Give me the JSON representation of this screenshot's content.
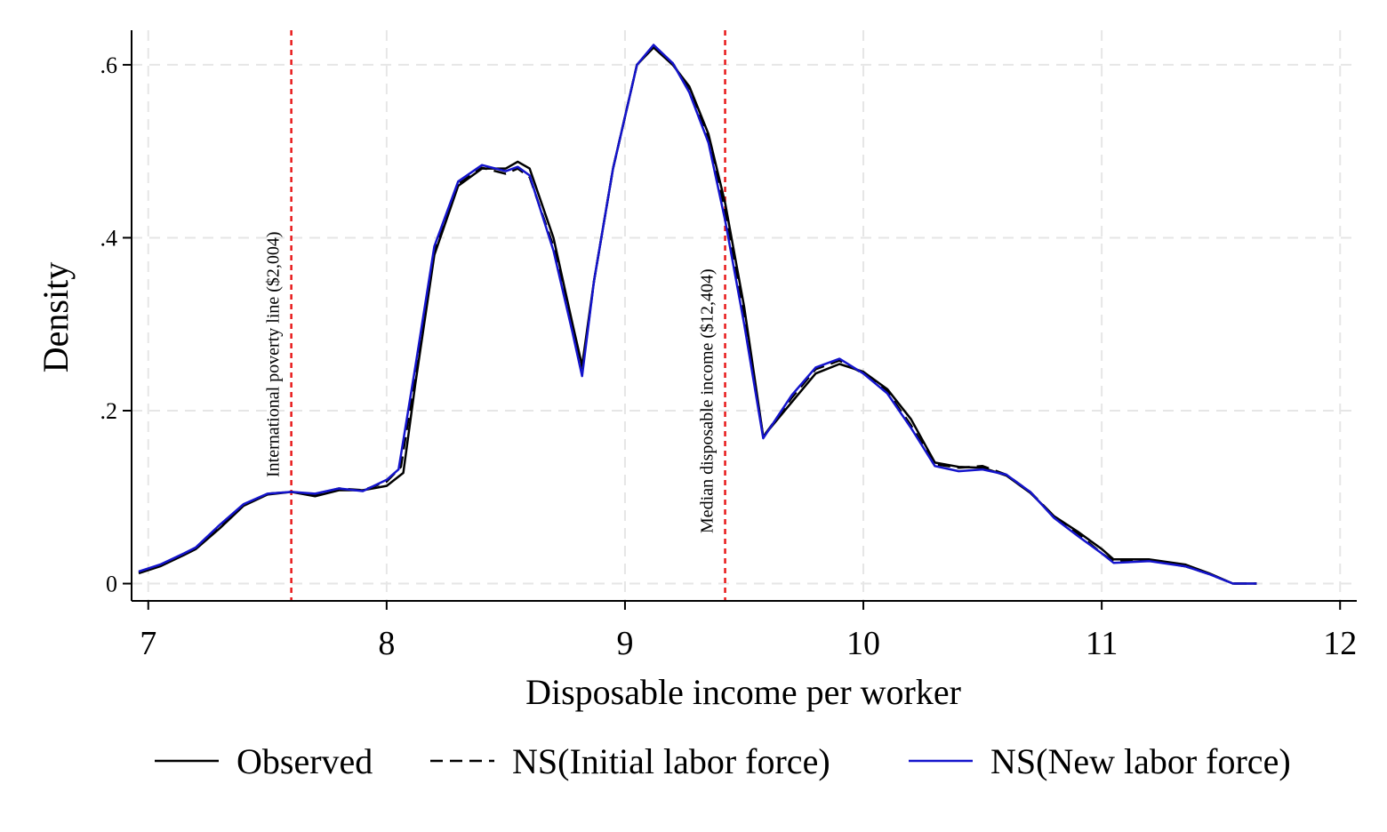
{
  "chart_data": {
    "type": "line",
    "title": "",
    "xlabel": "Disposable income per worker",
    "ylabel": "Density",
    "xlim": [
      6.93,
      12.07
    ],
    "ylim": [
      -0.02,
      0.64
    ],
    "xticks": [
      7,
      8,
      9,
      10,
      11,
      12
    ],
    "xtick_labels": [
      "7",
      "8",
      "9",
      "10",
      "11",
      "12"
    ],
    "yticks": [
      0,
      0.2,
      0.4,
      0.6
    ],
    "ytick_labels": [
      "0",
      ".2",
      ".4",
      ".6"
    ],
    "grid": true,
    "legend_position": "bottom",
    "reference_lines": [
      {
        "x": 7.6,
        "label": "International poverty line ($2,004)",
        "color": "#e8191a"
      },
      {
        "x": 9.42,
        "label": "Median disposable income ($12,404)",
        "color": "#e8191a"
      }
    ],
    "series": [
      {
        "name": "Observed",
        "color": "#000000",
        "dash": "solid",
        "points": [
          [
            6.96,
            0.012
          ],
          [
            7.05,
            0.02
          ],
          [
            7.15,
            0.033
          ],
          [
            7.2,
            0.04
          ],
          [
            7.3,
            0.064
          ],
          [
            7.4,
            0.09
          ],
          [
            7.5,
            0.103
          ],
          [
            7.6,
            0.106
          ],
          [
            7.7,
            0.101
          ],
          [
            7.8,
            0.108
          ],
          [
            7.9,
            0.108
          ],
          [
            8.0,
            0.113
          ],
          [
            8.07,
            0.128
          ],
          [
            8.12,
            0.23
          ],
          [
            8.2,
            0.38
          ],
          [
            8.3,
            0.46
          ],
          [
            8.4,
            0.48
          ],
          [
            8.5,
            0.48
          ],
          [
            8.55,
            0.488
          ],
          [
            8.6,
            0.48
          ],
          [
            8.7,
            0.4
          ],
          [
            8.78,
            0.3
          ],
          [
            8.82,
            0.252
          ],
          [
            8.87,
            0.35
          ],
          [
            8.95,
            0.48
          ],
          [
            9.05,
            0.6
          ],
          [
            9.12,
            0.62
          ],
          [
            9.2,
            0.6
          ],
          [
            9.27,
            0.575
          ],
          [
            9.35,
            0.52
          ],
          [
            9.42,
            0.44
          ],
          [
            9.5,
            0.32
          ],
          [
            9.58,
            0.17
          ],
          [
            9.7,
            0.21
          ],
          [
            9.8,
            0.243
          ],
          [
            9.9,
            0.254
          ],
          [
            10.0,
            0.245
          ],
          [
            10.1,
            0.225
          ],
          [
            10.2,
            0.19
          ],
          [
            10.3,
            0.14
          ],
          [
            10.4,
            0.135
          ],
          [
            10.5,
            0.134
          ],
          [
            10.6,
            0.125
          ],
          [
            10.7,
            0.105
          ],
          [
            10.8,
            0.078
          ],
          [
            10.9,
            0.06
          ],
          [
            11.0,
            0.04
          ],
          [
            11.05,
            0.028
          ],
          [
            11.2,
            0.028
          ],
          [
            11.35,
            0.022
          ],
          [
            11.45,
            0.012
          ],
          [
            11.55,
            0.0
          ],
          [
            11.65,
            0.0
          ]
        ]
      },
      {
        "name": "NS(Initial labor force)",
        "color": "#000000",
        "dash": "dashed",
        "points": [
          [
            6.96,
            0.013
          ],
          [
            7.05,
            0.021
          ],
          [
            7.15,
            0.034
          ],
          [
            7.2,
            0.041
          ],
          [
            7.3,
            0.066
          ],
          [
            7.4,
            0.091
          ],
          [
            7.5,
            0.104
          ],
          [
            7.6,
            0.106
          ],
          [
            7.7,
            0.103
          ],
          [
            7.8,
            0.11
          ],
          [
            7.9,
            0.108
          ],
          [
            8.0,
            0.118
          ],
          [
            8.06,
            0.135
          ],
          [
            8.12,
            0.24
          ],
          [
            8.2,
            0.385
          ],
          [
            8.3,
            0.462
          ],
          [
            8.4,
            0.481
          ],
          [
            8.5,
            0.474
          ],
          [
            8.55,
            0.48
          ],
          [
            8.6,
            0.47
          ],
          [
            8.7,
            0.39
          ],
          [
            8.78,
            0.295
          ],
          [
            8.82,
            0.244
          ],
          [
            8.87,
            0.35
          ],
          [
            8.95,
            0.48
          ],
          [
            9.05,
            0.6
          ],
          [
            9.12,
            0.622
          ],
          [
            9.2,
            0.602
          ],
          [
            9.27,
            0.57
          ],
          [
            9.35,
            0.515
          ],
          [
            9.42,
            0.43
          ],
          [
            9.5,
            0.31
          ],
          [
            9.58,
            0.17
          ],
          [
            9.7,
            0.215
          ],
          [
            9.8,
            0.248
          ],
          [
            9.9,
            0.258
          ],
          [
            10.0,
            0.243
          ],
          [
            10.1,
            0.222
          ],
          [
            10.2,
            0.183
          ],
          [
            10.3,
            0.138
          ],
          [
            10.4,
            0.134
          ],
          [
            10.5,
            0.136
          ],
          [
            10.6,
            0.126
          ],
          [
            10.7,
            0.106
          ],
          [
            10.8,
            0.078
          ],
          [
            10.9,
            0.058
          ],
          [
            11.0,
            0.035
          ],
          [
            11.05,
            0.026
          ],
          [
            11.2,
            0.027
          ],
          [
            11.35,
            0.02
          ],
          [
            11.45,
            0.011
          ],
          [
            11.55,
            0.0
          ],
          [
            11.65,
            0.0
          ]
        ]
      },
      {
        "name": "NS(New labor force)",
        "color": "#1414cc",
        "dash": "solid",
        "points": [
          [
            6.96,
            0.014
          ],
          [
            7.05,
            0.022
          ],
          [
            7.15,
            0.035
          ],
          [
            7.2,
            0.042
          ],
          [
            7.3,
            0.068
          ],
          [
            7.4,
            0.092
          ],
          [
            7.5,
            0.104
          ],
          [
            7.6,
            0.106
          ],
          [
            7.7,
            0.104
          ],
          [
            7.8,
            0.11
          ],
          [
            7.9,
            0.107
          ],
          [
            8.0,
            0.12
          ],
          [
            8.05,
            0.132
          ],
          [
            8.12,
            0.25
          ],
          [
            8.2,
            0.39
          ],
          [
            8.3,
            0.465
          ],
          [
            8.4,
            0.484
          ],
          [
            8.5,
            0.477
          ],
          [
            8.55,
            0.482
          ],
          [
            8.6,
            0.472
          ],
          [
            8.7,
            0.385
          ],
          [
            8.78,
            0.29
          ],
          [
            8.82,
            0.24
          ],
          [
            8.87,
            0.35
          ],
          [
            8.95,
            0.48
          ],
          [
            9.05,
            0.6
          ],
          [
            9.12,
            0.623
          ],
          [
            9.2,
            0.602
          ],
          [
            9.27,
            0.568
          ],
          [
            9.35,
            0.51
          ],
          [
            9.42,
            0.42
          ],
          [
            9.5,
            0.3
          ],
          [
            9.58,
            0.168
          ],
          [
            9.7,
            0.218
          ],
          [
            9.8,
            0.25
          ],
          [
            9.9,
            0.26
          ],
          [
            10.0,
            0.243
          ],
          [
            10.1,
            0.22
          ],
          [
            10.2,
            0.18
          ],
          [
            10.3,
            0.136
          ],
          [
            10.4,
            0.13
          ],
          [
            10.5,
            0.132
          ],
          [
            10.6,
            0.126
          ],
          [
            10.7,
            0.106
          ],
          [
            10.8,
            0.076
          ],
          [
            10.9,
            0.055
          ],
          [
            11.0,
            0.035
          ],
          [
            11.05,
            0.024
          ],
          [
            11.2,
            0.026
          ],
          [
            11.35,
            0.02
          ],
          [
            11.45,
            0.011
          ],
          [
            11.55,
            0.0
          ],
          [
            11.65,
            0.0
          ]
        ]
      }
    ]
  }
}
